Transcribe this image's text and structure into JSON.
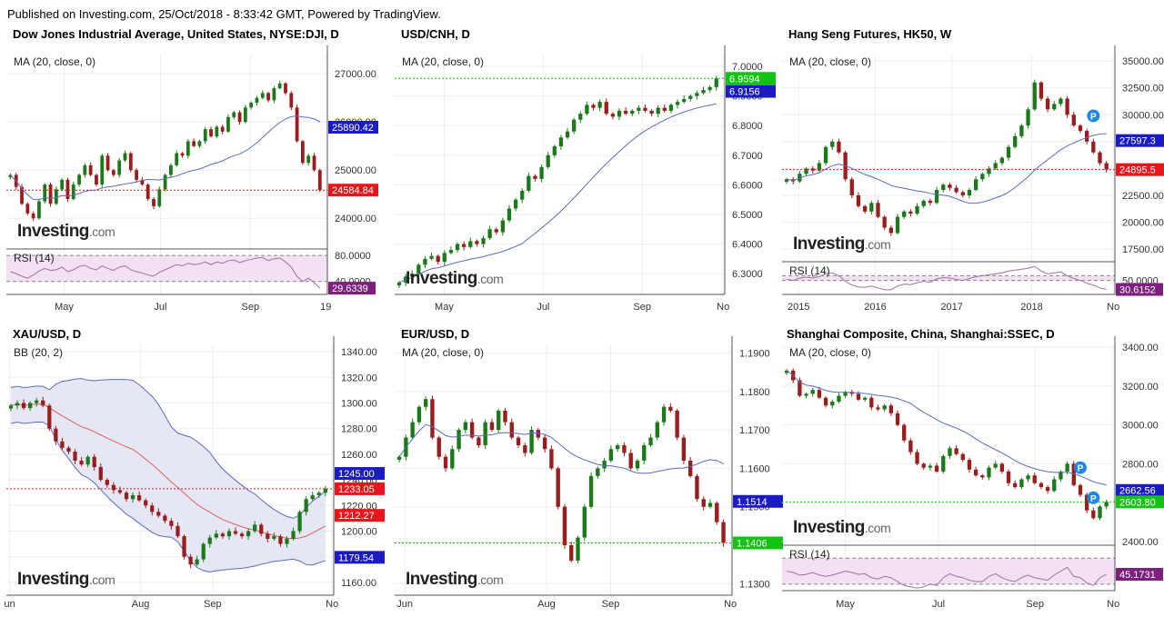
{
  "header": "Published on Investing.com, 25/Oct/2018 - 8:33:42 GMT, Powered by TradingView.",
  "brand": {
    "word": "Investing",
    "suffix": ".com"
  },
  "colors": {
    "up": "#1a7a1a",
    "down": "#9b1c1c",
    "ma": "#5c6bc0",
    "rsi_fill": "#f3e0f3",
    "rsi_line": "#a070a0",
    "bb_fill": "#dfe1f3"
  },
  "chart_data": [
    {
      "type": "candlestick",
      "title": "Dow Jones Industrial Average, United States, NYSE:DJI, D",
      "indicator": "MA (20, close, 0)",
      "ylim": [
        23400,
        27400
      ],
      "yticks": [
        {
          "v": 24000,
          "t": "24000.00"
        },
        {
          "v": 25000,
          "t": "25000.00"
        },
        {
          "v": 26000,
          "t": "26000.00"
        },
        {
          "v": 27000,
          "t": "27000.00"
        }
      ],
      "x_labels": [
        {
          "p": 0.18,
          "t": "May"
        },
        {
          "p": 0.48,
          "t": "Jul"
        },
        {
          "p": 0.76,
          "t": "Sep"
        },
        {
          "p": 0.995,
          "t": "19"
        }
      ],
      "series": [
        {
          "name": "close",
          "values": [
            24900,
            24650,
            24300,
            24100,
            24000,
            24350,
            24700,
            24300,
            24600,
            24800,
            24400,
            24700,
            24900,
            25100,
            24900,
            24700,
            25300,
            25000,
            24900,
            25200,
            25350,
            25000,
            24800,
            24700,
            24400,
            24250,
            24600,
            24900,
            25100,
            25350,
            25300,
            25600,
            25500,
            25600,
            25850,
            25700,
            25900,
            25800,
            26100,
            26200,
            26000,
            26300,
            26400,
            26500,
            26600,
            26450,
            26700,
            26800,
            26600,
            26300,
            25600,
            25150,
            25300,
            25000,
            24584.84
          ]
        }
      ],
      "ma_window": 20,
      "markers": [
        {
          "v": 25890.42,
          "t": "25890.42",
          "c": "#1b1bc4"
        },
        {
          "v": 24584.84,
          "t": "24584.84",
          "c": "#e8161c"
        }
      ],
      "hline": {
        "v": 24584.84,
        "c": "#e8161c"
      },
      "sub": {
        "label": "RSI (14)",
        "lim": [
          20,
          90
        ],
        "grid": [
          {
            "v": 80,
            "t": "80.0000"
          },
          {
            "v": 40,
            "t": "40.0000"
          }
        ],
        "values": [
          55,
          52,
          48,
          45,
          50,
          56,
          60,
          57,
          58,
          62,
          55,
          58,
          63,
          65,
          60,
          58,
          64,
          60,
          57,
          62,
          64,
          58,
          55,
          53,
          50,
          48,
          54,
          58,
          62,
          66,
          64,
          68,
          66,
          67,
          70,
          66,
          70,
          68,
          72,
          73,
          69,
          72,
          74,
          76,
          77,
          72,
          75,
          76,
          70,
          62,
          48,
          40,
          45,
          38,
          29.6339
        ],
        "marker": {
          "v": 29.6339,
          "t": "29.6339",
          "c": "#7d1f7d"
        }
      }
    },
    {
      "type": "candlestick",
      "title": "USD/CNH, D",
      "indicator": "MA (20, close, 0)",
      "ylim": [
        6.23,
        7.04
      ],
      "yticks": [
        {
          "v": 6.3,
          "t": "6.3000"
        },
        {
          "v": 6.4,
          "t": "6.4000"
        },
        {
          "v": 6.5,
          "t": "6.5000"
        },
        {
          "v": 6.6,
          "t": "6.6000"
        },
        {
          "v": 6.7,
          "t": "6.7000"
        },
        {
          "v": 6.8,
          "t": "6.8000"
        },
        {
          "v": 6.9,
          "t": "6.9000"
        },
        {
          "v": 7.0,
          "t": "7.0000"
        }
      ],
      "x_labels": [
        {
          "p": 0.15,
          "t": "May"
        },
        {
          "p": 0.45,
          "t": "Jul"
        },
        {
          "p": 0.75,
          "t": "Sep"
        },
        {
          "p": 0.995,
          "t": "No"
        }
      ],
      "series": [
        {
          "name": "close",
          "values": [
            6.27,
            6.29,
            6.3,
            6.33,
            6.35,
            6.36,
            6.34,
            6.37,
            6.38,
            6.4,
            6.39,
            6.41,
            6.4,
            6.42,
            6.45,
            6.44,
            6.48,
            6.52,
            6.55,
            6.58,
            6.63,
            6.62,
            6.66,
            6.7,
            6.73,
            6.76,
            6.78,
            6.82,
            6.84,
            6.87,
            6.86,
            6.88,
            6.84,
            6.83,
            6.85,
            6.84,
            6.85,
            6.86,
            6.85,
            6.84,
            6.86,
            6.85,
            6.87,
            6.88,
            6.89,
            6.9,
            6.91,
            6.92,
            6.93,
            6.9594
          ]
        }
      ],
      "ma_window": 20,
      "markers": [
        {
          "v": 6.9594,
          "t": "6.9594",
          "c": "#12c412"
        },
        {
          "v": 6.9156,
          "t": "6.9156",
          "c": "#1b1bc4"
        }
      ],
      "hline": {
        "v": 6.9594,
        "c": "#12c412"
      }
    },
    {
      "type": "candlestick",
      "title": "Hang Seng Futures, HK50, W",
      "indicator": "MA (20, close, 0)",
      "ylim": [
        16500,
        35600
      ],
      "yticks": [
        {
          "v": 17500,
          "t": "17500.00"
        },
        {
          "v": 20000,
          "t": "20000.00"
        },
        {
          "v": 22500,
          "t": "22500.00"
        },
        {
          "v": 25000,
          "t": "25000.00"
        },
        {
          "v": 27500,
          "t": "27500.00"
        },
        {
          "v": 30000,
          "t": "30000.00"
        },
        {
          "v": 32500,
          "t": "32500.00"
        },
        {
          "v": 35000,
          "t": "35000.00"
        }
      ],
      "x_labels": [
        {
          "p": 0.05,
          "t": "2015"
        },
        {
          "p": 0.28,
          "t": "2016"
        },
        {
          "p": 0.51,
          "t": "2017"
        },
        {
          "p": 0.75,
          "t": "2018"
        },
        {
          "p": 0.995,
          "t": "No"
        }
      ],
      "series": [
        {
          "name": "close",
          "values": [
            24000,
            23800,
            24500,
            25000,
            24800,
            25500,
            27000,
            27500,
            26500,
            24000,
            22500,
            21500,
            21000,
            21800,
            20500,
            19500,
            19000,
            20500,
            21000,
            20800,
            21500,
            22000,
            21800,
            23000,
            23500,
            23200,
            22800,
            22500,
            23000,
            24000,
            24500,
            25000,
            25500,
            26000,
            27000,
            28000,
            29000,
            30500,
            33000,
            31500,
            30500,
            31000,
            31500,
            30000,
            29000,
            28500,
            27500,
            26500,
            25500,
            24895.5
          ]
        }
      ],
      "ma_window": 20,
      "markers": [
        {
          "v": 27597.3,
          "t": "27597.3",
          "c": "#1b1bc4"
        },
        {
          "v": 24895.5,
          "t": "24895.5",
          "c": "#e8161c"
        }
      ],
      "hline": {
        "v": 24895.5,
        "c": "#e8161c"
      },
      "pins": [
        {
          "i": 47,
          "v": 29900
        }
      ],
      "sub": {
        "label": "RSI (14)",
        "lim": [
          20,
          90
        ],
        "grid": [
          {
            "v": 60,
            "t": ""
          },
          {
            "v": 50,
            "t": "50.0000"
          }
        ],
        "values": [
          52,
          50,
          55,
          57,
          55,
          58,
          64,
          66,
          60,
          48,
          40,
          36,
          35,
          38,
          34,
          30,
          30,
          38,
          42,
          41,
          45,
          48,
          46,
          53,
          56,
          55,
          52,
          50,
          54,
          58,
          60,
          62,
          64,
          66,
          70,
          72,
          74,
          76,
          80,
          70,
          64,
          66,
          68,
          60,
          54,
          50,
          44,
          40,
          34,
          30.6152
        ],
        "marker": {
          "v": 30.6152,
          "t": "30.6152",
          "c": "#7d1f7d"
        }
      }
    },
    {
      "type": "candlestick",
      "title": "XAU/USD, D",
      "indicator": "BB (20, 2)",
      "ylim": [
        1150,
        1345
      ],
      "yticks": [
        {
          "v": 1160,
          "t": "1160.00"
        },
        {
          "v": 1180,
          "t": "1180.00"
        },
        {
          "v": 1200,
          "t": "1200.00"
        },
        {
          "v": 1220,
          "t": "1220.00"
        },
        {
          "v": 1240,
          "t": "1240.00"
        },
        {
          "v": 1260,
          "t": "1260.00"
        },
        {
          "v": 1280,
          "t": "1280.00"
        },
        {
          "v": 1300,
          "t": "1300.00"
        },
        {
          "v": 1320,
          "t": "1320.00"
        },
        {
          "v": 1340,
          "t": "1340.00"
        }
      ],
      "x_labels": [
        {
          "p": 0.01,
          "t": "un"
        },
        {
          "p": 0.41,
          "t": "Aug"
        },
        {
          "p": 0.63,
          "t": "Sep"
        },
        {
          "p": 0.995,
          "t": "No"
        }
      ],
      "series": [
        {
          "name": "close",
          "values": [
            1298,
            1300,
            1296,
            1300,
            1302,
            1298,
            1280,
            1270,
            1265,
            1262,
            1255,
            1252,
            1258,
            1250,
            1240,
            1236,
            1232,
            1230,
            1225,
            1228,
            1224,
            1220,
            1215,
            1212,
            1208,
            1204,
            1196,
            1180,
            1174,
            1178,
            1190,
            1195,
            1198,
            1196,
            1200,
            1198,
            1196,
            1200,
            1205,
            1198,
            1194,
            1196,
            1190,
            1194,
            1200,
            1215,
            1225,
            1228,
            1230,
            1233.05
          ]
        }
      ],
      "bb": true,
      "markers": [
        {
          "v": 1245,
          "t": "1245.00",
          "c": "#1b1bc4"
        },
        {
          "v": 1233.05,
          "t": "1233.05",
          "c": "#e8161c"
        },
        {
          "v": 1212.27,
          "t": "1212.27",
          "c": "#e8161c"
        },
        {
          "v": 1179.54,
          "t": "1179.54",
          "c": "#1b1bc4"
        }
      ],
      "hline": {
        "v": 1233.05,
        "c": "#e8161c"
      }
    },
    {
      "type": "candlestick",
      "title": "EUR/USD, D",
      "indicator": "MA (20, close, 0)",
      "ylim": [
        1.127,
        1.192
      ],
      "yticks": [
        {
          "v": 1.13,
          "t": "1.1300"
        },
        {
          "v": 1.14,
          "t": "1.1400"
        },
        {
          "v": 1.15,
          "t": "1.1500"
        },
        {
          "v": 1.16,
          "t": "1.1600"
        },
        {
          "v": 1.17,
          "t": "1.1700"
        },
        {
          "v": 1.18,
          "t": "1.1800"
        },
        {
          "v": 1.19,
          "t": "1.1900"
        }
      ],
      "x_labels": [
        {
          "p": 0.03,
          "t": "Jun"
        },
        {
          "p": 0.45,
          "t": "Aug"
        },
        {
          "p": 0.64,
          "t": "Sep"
        },
        {
          "p": 0.995,
          "t": "No"
        }
      ],
      "series": [
        {
          "name": "close",
          "values": [
            1.163,
            1.168,
            1.172,
            1.176,
            1.178,
            1.168,
            1.163,
            1.16,
            1.165,
            1.17,
            1.172,
            1.168,
            1.166,
            1.172,
            1.17,
            1.175,
            1.172,
            1.168,
            1.166,
            1.164,
            1.17,
            1.168,
            1.165,
            1.16,
            1.15,
            1.14,
            1.136,
            1.142,
            1.15,
            1.158,
            1.16,
            1.162,
            1.165,
            1.166,
            1.164,
            1.16,
            1.162,
            1.166,
            1.168,
            1.172,
            1.176,
            1.175,
            1.168,
            1.162,
            1.158,
            1.152,
            1.15,
            1.151,
            1.146,
            1.1406
          ]
        }
      ],
      "ma_window": 20,
      "markers": [
        {
          "v": 1.1514,
          "t": "1.1514",
          "c": "#1b1bc4"
        },
        {
          "v": 1.1406,
          "t": "1.1406",
          "c": "#12c412"
        }
      ],
      "hline": {
        "v": 1.1406,
        "c": "#12c412"
      }
    },
    {
      "type": "candlestick",
      "title": "Shanghai Composite, China, Shanghai:SSEC, D",
      "indicator": "MA (20, close, 0)",
      "ylim": [
        2390,
        3410
      ],
      "yticks": [
        {
          "v": 2400,
          "t": "2400.00"
        },
        {
          "v": 2600,
          "t": "2600.00"
        },
        {
          "v": 2800,
          "t": "2800.00"
        },
        {
          "v": 3000,
          "t": "3000.00"
        },
        {
          "v": 3200,
          "t": "3200.00"
        },
        {
          "v": 3400,
          "t": "3400.00"
        }
      ],
      "x_labels": [
        {
          "p": 0.19,
          "t": "May"
        },
        {
          "p": 0.47,
          "t": "Jul"
        },
        {
          "p": 0.76,
          "t": "Sep"
        },
        {
          "p": 0.995,
          "t": "No"
        }
      ],
      "series": [
        {
          "name": "close",
          "values": [
            3280,
            3230,
            3150,
            3160,
            3180,
            3140,
            3100,
            3120,
            3150,
            3170,
            3160,
            3130,
            3140,
            3090,
            3080,
            3100,
            3060,
            3000,
            2920,
            2860,
            2800,
            2780,
            2790,
            2760,
            2840,
            2880,
            2850,
            2820,
            2770,
            2740,
            2730,
            2780,
            2800,
            2760,
            2700,
            2680,
            2720,
            2740,
            2700,
            2680,
            2660,
            2720,
            2760,
            2800,
            2690,
            2640,
            2560,
            2520,
            2580,
            2603.8
          ]
        }
      ],
      "ma_window": 20,
      "markers": [
        {
          "v": 2662.56,
          "t": "2662.56",
          "c": "#1b1bc4"
        },
        {
          "v": 2603.8,
          "t": "2603.80",
          "c": "#12c412"
        }
      ],
      "hline": {
        "v": 2603.8,
        "c": "#12c412"
      },
      "pins": [
        {
          "i": 45,
          "v": 2780
        },
        {
          "i": 47,
          "v": 2625
        }
      ],
      "sub": {
        "label": "RSI (14)",
        "lim": [
          20,
          90
        ],
        "grid": [
          {
            "v": 70,
            "t": ""
          },
          {
            "v": 30,
            "t": ""
          }
        ],
        "values": [
          50,
          48,
          44,
          45,
          48,
          44,
          42,
          44,
          47,
          50,
          48,
          45,
          46,
          40,
          38,
          42,
          40,
          34,
          28,
          26,
          24,
          26,
          30,
          28,
          40,
          46,
          42,
          40,
          36,
          34,
          34,
          42,
          46,
          40,
          36,
          34,
          40,
          44,
          40,
          38,
          36,
          44,
          50,
          56,
          42,
          40,
          32,
          28,
          40,
          45.1731
        ],
        "marker": {
          "v": 45.1731,
          "t": "45.1731",
          "c": "#7d1f7d"
        }
      }
    }
  ]
}
